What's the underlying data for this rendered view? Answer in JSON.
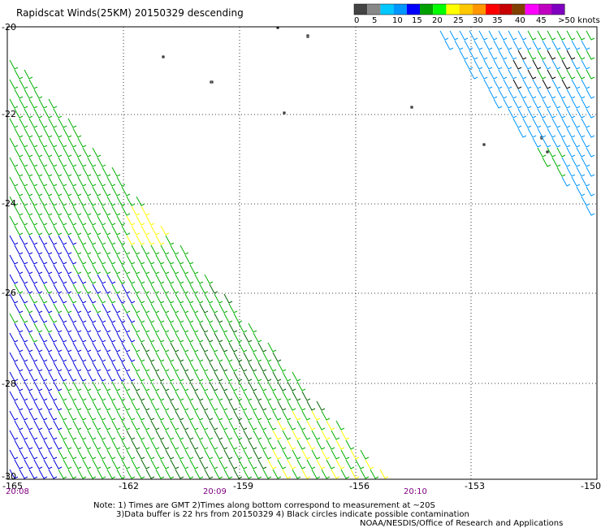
{
  "title": "Rapidscat Winds(25KM) 20150329 descending",
  "legend": {
    "labels": [
      "0",
      "5",
      "10",
      "15",
      "20",
      "25",
      "30",
      "35",
      "40",
      "45",
      ">50 knots"
    ],
    "colors": [
      "#444444",
      "#888888",
      "#00c8ff",
      "#0096ff",
      "#0000ff",
      "#00a000",
      "#00ff00",
      "#ffff00",
      "#ffc800",
      "#ff9600",
      "#ff0000",
      "#c80000",
      "#804000",
      "#ff00ff",
      "#c000c0",
      "#8000c0"
    ]
  },
  "axes": {
    "lat_labels": [
      "-20",
      "-22",
      "-24",
      "-26",
      "-28",
      "-30"
    ],
    "lon_labels": [
      "-165",
      "-162",
      "-159",
      "-156",
      "-153",
      "-150"
    ]
  },
  "pass_times": [
    "20:08",
    "20:09",
    "20:10"
  ],
  "notes": [
    "Note: 1) Times are GMT 2)Times along bottom correspond to measurement at ~20S",
    "3)Data buffer is 22 hrs from 20150329 4) Black circles indicate possible contamination",
    "NOAA/NESDIS/Office of Research and Applications"
  ],
  "colors": {
    "blue_wind": "#0000dd",
    "green_wind": "#00b000",
    "darkgreen_wind": "#006400",
    "yellow_wind": "#ffff00",
    "orange_wind": "#ff8000",
    "lightblue_wind": "#0096ff",
    "gridline": "#000000",
    "time_label": "#800080"
  }
}
